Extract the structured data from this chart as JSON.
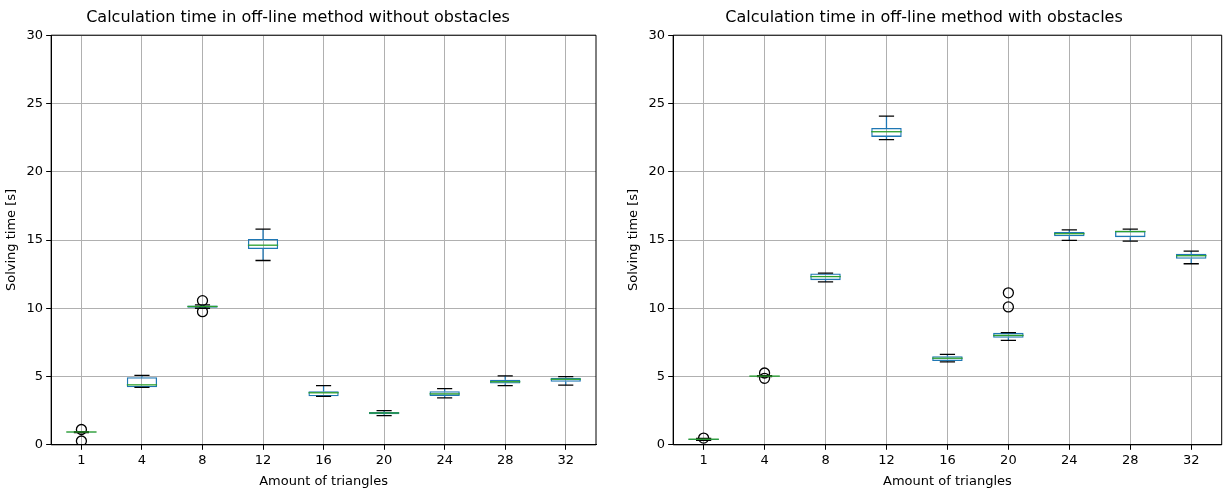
{
  "chart_data": [
    {
      "type": "box",
      "title": "Calculation time in off-line method without obstacles",
      "xlabel": "Amount of triangles",
      "ylabel": "Solving time [s]",
      "categories": [
        "1",
        "4",
        "8",
        "12",
        "16",
        "20",
        "24",
        "28",
        "32"
      ],
      "ylim": [
        0,
        30
      ],
      "yticks": [
        0,
        5,
        10,
        15,
        20,
        25,
        30
      ],
      "grid": true,
      "legend": false,
      "series": [
        {
          "color": "#1f77b4",
          "boxes": [
            {
              "low": 0.9,
              "q1": 0.9,
              "median": 0.94,
              "q3": 0.96,
              "high": 0.97,
              "outliers": [
                1.12,
                0.28
              ]
            },
            {
              "low": 4.2,
              "q1": 4.22,
              "median": 4.39,
              "q3": 4.95,
              "high": 5.08
            },
            {
              "low": 10.0,
              "q1": 10.03,
              "median": 10.13,
              "q3": 10.2,
              "high": 10.25,
              "outliers": [
                10.56,
                9.75
              ]
            },
            {
              "low": 13.5,
              "q1": 14.34,
              "median": 14.62,
              "q3": 15.08,
              "high": 15.79
            },
            {
              "low": 3.54,
              "q1": 3.56,
              "median": 3.81,
              "q3": 3.93,
              "high": 4.34
            },
            {
              "low": 2.13,
              "q1": 2.23,
              "median": 2.33,
              "q3": 2.41,
              "high": 2.51
            },
            {
              "low": 3.43,
              "q1": 3.58,
              "median": 3.73,
              "q3": 3.93,
              "high": 4.11
            },
            {
              "low": 4.34,
              "q1": 4.49,
              "median": 4.62,
              "q3": 4.77,
              "high": 5.05
            },
            {
              "low": 4.37,
              "q1": 4.62,
              "median": 4.8,
              "q3": 4.92,
              "high": 5.0
            }
          ]
        }
      ]
    },
    {
      "type": "box",
      "title": "Calculation time in off-line method with obstacles",
      "xlabel": "Amount of triangles",
      "ylabel": "Solving time [s]",
      "categories": [
        "1",
        "4",
        "8",
        "12",
        "16",
        "20",
        "24",
        "28",
        "32"
      ],
      "ylim": [
        0,
        30
      ],
      "yticks": [
        0,
        5,
        10,
        15,
        20,
        25,
        30
      ],
      "grid": true,
      "legend": false,
      "series": [
        {
          "color": "#1f77b4",
          "boxes": [
            {
              "low": 0.33,
              "q1": 0.36,
              "median": 0.41,
              "q3": 0.44,
              "high": 0.46,
              "outliers": [
                0.49
              ]
            },
            {
              "low": 5.0,
              "q1": 5.0,
              "median": 5.03,
              "q3": 5.05,
              "high": 5.07,
              "outliers": [
                5.26,
                4.87
              ]
            },
            {
              "low": 11.93,
              "q1": 12.06,
              "median": 12.32,
              "q3": 12.55,
              "high": 12.58
            },
            {
              "low": 22.35,
              "q1": 22.55,
              "median": 22.93,
              "q3": 23.2,
              "high": 24.08
            },
            {
              "low": 6.08,
              "q1": 6.13,
              "median": 6.34,
              "q3": 6.49,
              "high": 6.62
            },
            {
              "low": 7.65,
              "q1": 7.84,
              "median": 8.01,
              "q3": 8.2,
              "high": 8.22,
              "outliers": [
                11.13,
                10.1
              ]
            },
            {
              "low": 14.97,
              "q1": 15.28,
              "median": 15.46,
              "q3": 15.59,
              "high": 15.74
            },
            {
              "low": 14.92,
              "q1": 15.21,
              "median": 15.62,
              "q3": 15.67,
              "high": 15.8
            },
            {
              "low": 13.26,
              "q1": 13.62,
              "median": 13.85,
              "q3": 14.0,
              "high": 14.19
            }
          ]
        }
      ]
    }
  ]
}
